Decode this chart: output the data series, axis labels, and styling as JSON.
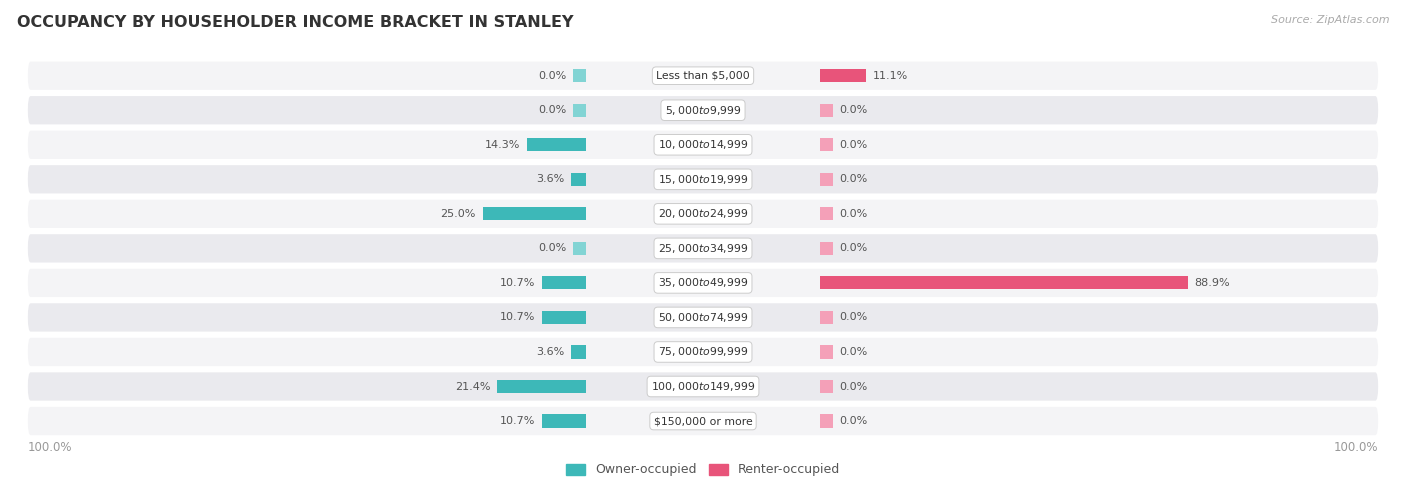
{
  "title": "OCCUPANCY BY HOUSEHOLDER INCOME BRACKET IN STANLEY",
  "source": "Source: ZipAtlas.com",
  "categories": [
    "Less than $5,000",
    "$5,000 to $9,999",
    "$10,000 to $14,999",
    "$15,000 to $19,999",
    "$20,000 to $24,999",
    "$25,000 to $34,999",
    "$35,000 to $49,999",
    "$50,000 to $74,999",
    "$75,000 to $99,999",
    "$100,000 to $149,999",
    "$150,000 or more"
  ],
  "owner_values": [
    0.0,
    0.0,
    14.3,
    3.6,
    25.0,
    0.0,
    10.7,
    10.7,
    3.6,
    21.4,
    10.7
  ],
  "renter_values": [
    11.1,
    0.0,
    0.0,
    0.0,
    0.0,
    0.0,
    88.9,
    0.0,
    0.0,
    0.0,
    0.0
  ],
  "owner_color_strong": "#3db8b8",
  "owner_color_light": "#82d4d4",
  "renter_color_strong": "#e8547a",
  "renter_color_light": "#f4a0b8",
  "label_color": "#555555",
  "row_bg_light": "#f4f4f6",
  "row_bg_dark": "#eaeaee",
  "title_color": "#333333",
  "axis_label_color": "#999999",
  "source_color": "#aaaaaa",
  "legend_color": "#555555",
  "min_bar": 3.0,
  "max_value": 100.0,
  "figsize": [
    14.06,
    4.87
  ],
  "dpi": 100
}
